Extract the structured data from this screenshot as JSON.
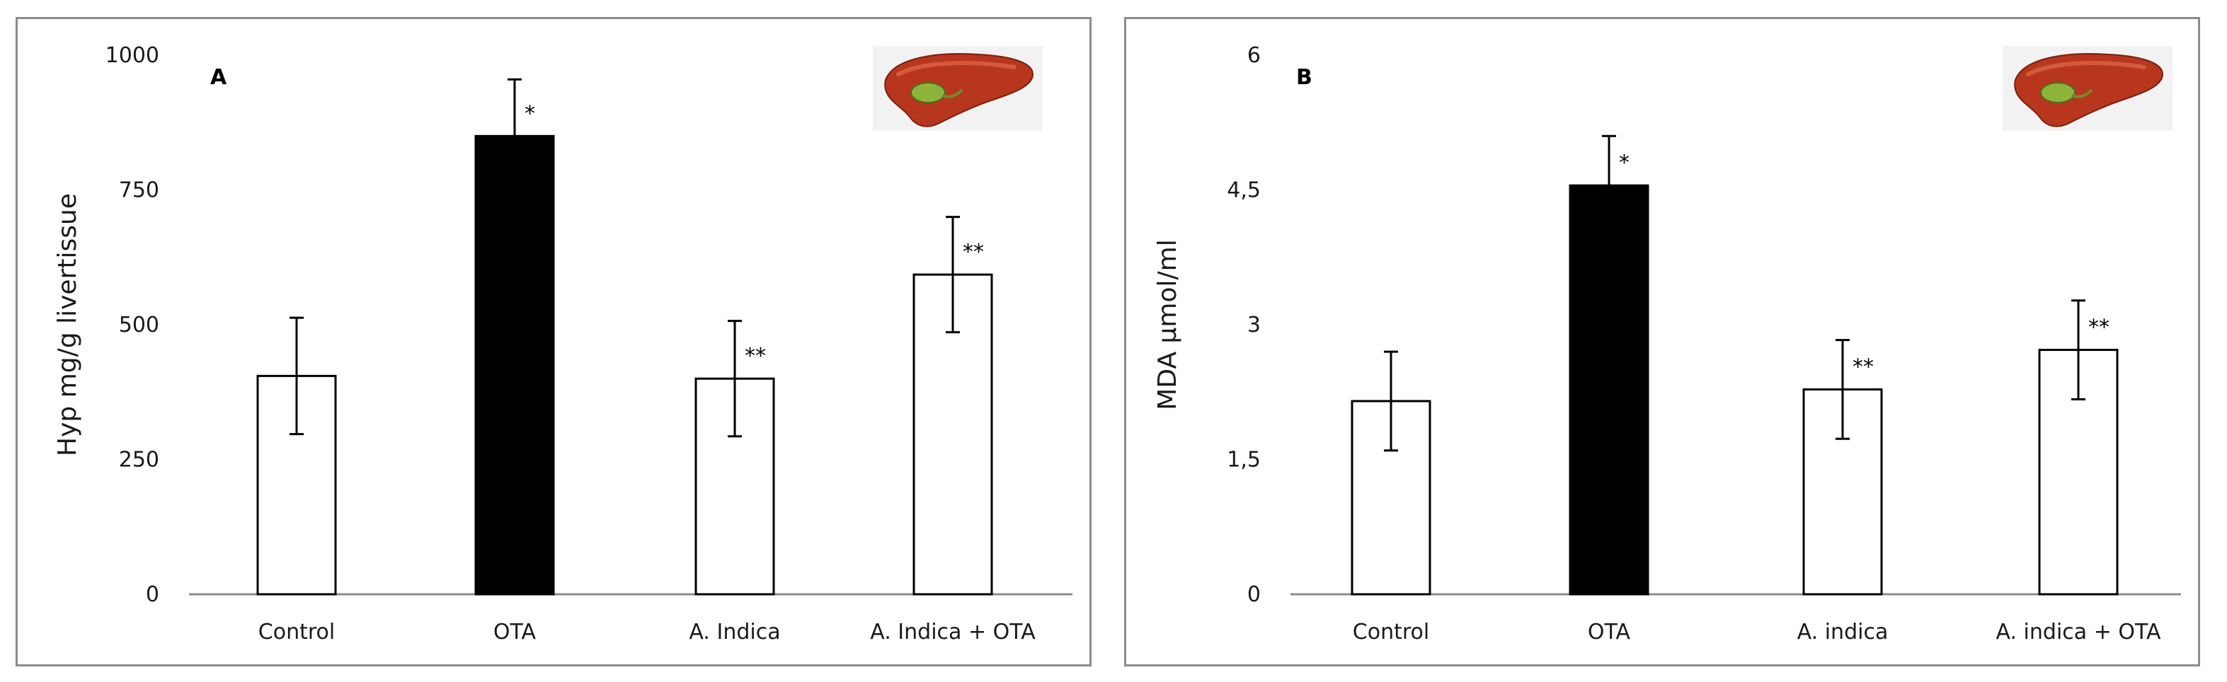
{
  "chart_data": [
    {
      "type": "bar",
      "panel_label": "A",
      "ylabel": "Hyp  mg/g livertissue",
      "ylim": [
        0,
        1000
      ],
      "yticks": [
        0,
        250,
        500,
        750,
        1000
      ],
      "ytick_labels": [
        "0",
        "250",
        "500",
        "750",
        "1000"
      ],
      "categories": [
        "Control",
        "OTA",
        "A. Indica",
        "A. Indica + OTA"
      ],
      "values": [
        405,
        850,
        400,
        593
      ],
      "errors": [
        108,
        105,
        107,
        107
      ],
      "significance": [
        "",
        "*",
        "**",
        "**"
      ],
      "bar_colors": [
        "#ffffff",
        "#000000",
        "#ffffff",
        "#ffffff"
      ],
      "icon": "liver-icon"
    },
    {
      "type": "bar",
      "panel_label": "B",
      "ylabel": "MDA μmol/ml",
      "ylim": [
        0,
        6
      ],
      "yticks": [
        0,
        1.5,
        3,
        4.5,
        6
      ],
      "ytick_labels": [
        "0",
        "1,5",
        "3",
        "4,5",
        "6"
      ],
      "categories": [
        "Control",
        "OTA",
        "A. indica",
        "A. indica + OTA"
      ],
      "values": [
        2.15,
        4.55,
        2.28,
        2.72
      ],
      "errors": [
        0.55,
        0.55,
        0.55,
        0.55
      ],
      "significance": [
        "",
        "*",
        "**",
        "**"
      ],
      "bar_colors": [
        "#ffffff",
        "#000000",
        "#ffffff",
        "#ffffff"
      ],
      "icon": "liver-icon"
    }
  ]
}
